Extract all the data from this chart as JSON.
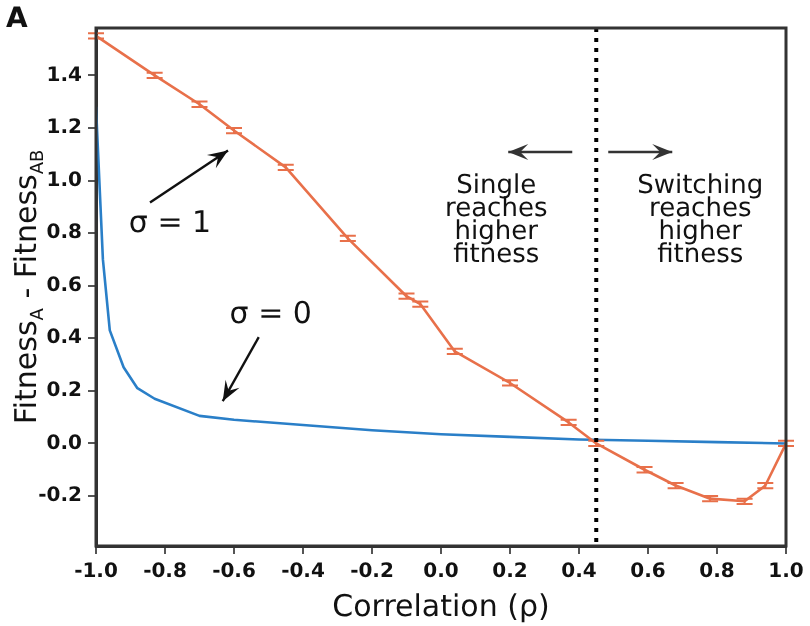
{
  "chart_data": {
    "type": "line",
    "xlabel": "Correlation (ρ)",
    "ylabel": "Fitness$_{A}$ - Fitness$_{AB}$",
    "xlim": [
      -1.0,
      1.0
    ],
    "ylim": [
      -0.39,
      1.58
    ],
    "xticks": [
      {
        "value": -1,
        "label": "-1.0"
      },
      -0.8,
      -0.6,
      -0.4,
      -0.2,
      {
        "value": 0,
        "label": "0.0"
      },
      0.2,
      0.4,
      0.6,
      0.8,
      {
        "value": 1,
        "label": "1.0"
      }
    ],
    "yticks": [
      -0.2,
      {
        "value": 0,
        "label": "0.0"
      },
      0.2,
      0.4,
      0.6,
      0.8,
      {
        "value": 1,
        "label": "1.0"
      },
      1.2,
      1.4
    ],
    "grid": false,
    "legend": false,
    "marker": "none",
    "line_style": "solid",
    "series": [
      {
        "color": "#e8704a",
        "x": [
          -1.0,
          -0.83,
          -0.7,
          -0.6,
          -0.45,
          -0.27,
          -0.1,
          -0.06,
          0.04,
          0.2,
          0.37,
          0.45,
          0.59,
          0.68,
          0.78,
          0.88,
          0.94,
          1.0
        ],
        "values": [
          1.55,
          1.4,
          1.29,
          1.19,
          1.05,
          0.78,
          0.56,
          0.53,
          0.35,
          0.23,
          0.08,
          0.0,
          -0.1,
          -0.16,
          -0.21,
          -0.22,
          -0.16,
          0.0
        ],
        "errors": [
          0.01,
          0.01,
          0.01,
          0.01,
          0.01,
          0.01,
          0.01,
          0.01,
          0.01,
          0.01,
          0.01,
          0.01,
          0.01,
          0.01,
          0.01,
          0.01,
          0.01,
          0.01
        ]
      },
      {
        "color": "#2a7fc8",
        "x": [
          -1.0,
          -0.98,
          -0.96,
          -0.92,
          -0.88,
          -0.83,
          -0.7,
          -0.6,
          -0.4,
          -0.2,
          0.0,
          0.2,
          0.4,
          0.6,
          0.8,
          1.0
        ],
        "values": [
          1.28,
          0.7,
          0.43,
          0.29,
          0.21,
          0.17,
          0.105,
          0.09,
          0.07,
          0.05,
          0.035,
          0.025,
          0.015,
          0.01,
          0.005,
          0.0
        ]
      }
    ],
    "ref_lines": [
      {
        "axis": "x",
        "value": 0.45,
        "color": "#000000",
        "line_style": "dotted"
      }
    ],
    "annotations": [
      "A",
      {
        "text": "σ = 1",
        "x": -0.6,
        "y": 1.19
      },
      {
        "text": "σ = 0",
        "x": -0.65,
        "y": 0.1
      },
      "Single reaches higher fitness",
      "Switching reaches higher fitness"
    ]
  }
}
